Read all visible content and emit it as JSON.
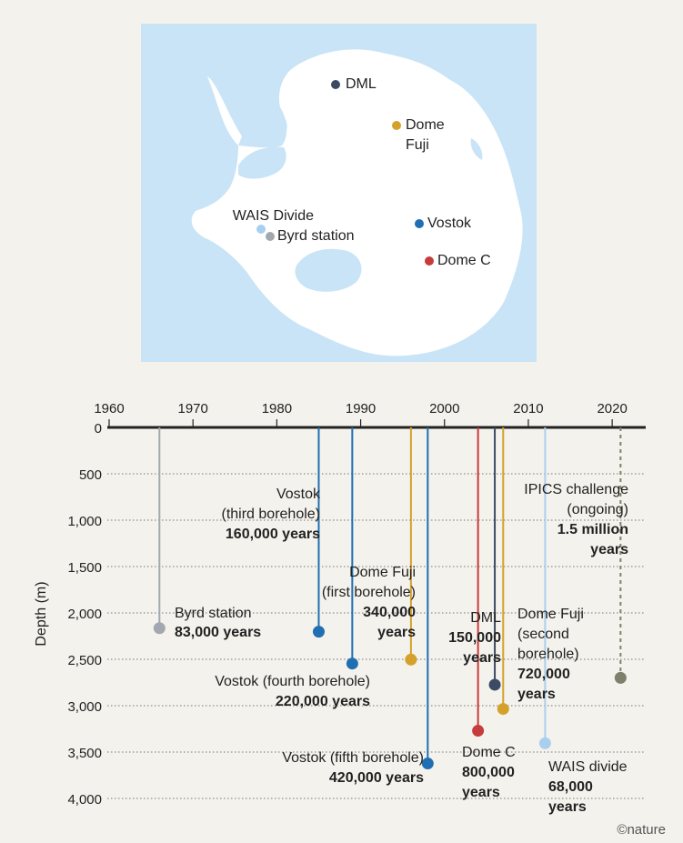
{
  "colors": {
    "background": "#f4f2ec",
    "ocean": "#c8e4f6",
    "land": "#ffffff",
    "ice_shelf": "#c8e4f6",
    "axis": "#222222",
    "grid": "#777777"
  },
  "map": {
    "sites": [
      {
        "name": "DML",
        "color": "#3d4a63"
      },
      {
        "name": "Dome Fuji",
        "lines": [
          "Dome",
          "Fuji"
        ],
        "color": "#d4a22c"
      },
      {
        "name": "WAIS Divide",
        "color": "#a9cfee"
      },
      {
        "name": "Byrd station",
        "color": "#a3a8b0"
      },
      {
        "name": "Vostok",
        "color": "#1f6fb2"
      },
      {
        "name": "Dome C",
        "color": "#c63b3b"
      }
    ]
  },
  "chart_data": {
    "type": "scatter",
    "title": "",
    "xlabel": "",
    "ylabel": "Depth (m)",
    "xlim": [
      1958,
      2025
    ],
    "ylim": [
      0,
      4000
    ],
    "x_ticks": [
      "1960",
      "1970",
      "1980",
      "1990",
      "2000",
      "2010",
      "2020"
    ],
    "y_ticks": [
      "0",
      "500",
      "1,000",
      "1,500",
      "2,000",
      "2,500",
      "3,000",
      "3,500",
      "4,000"
    ],
    "y_tick_values": [
      0,
      500,
      1000,
      1500,
      2000,
      2500,
      3000,
      3500,
      4000
    ],
    "x_tick_values": [
      1960,
      1970,
      1980,
      1990,
      2000,
      2010,
      2020
    ],
    "points": [
      {
        "id": "byrd",
        "year": 1966,
        "depth": 2164,
        "color": "#a3a8b0",
        "label_lines": [
          "Byrd station"
        ],
        "age": "83,000 years"
      },
      {
        "id": "vostok3",
        "year": 1985,
        "depth": 2202,
        "color": "#1f6fb2",
        "label_lines": [
          "Vostok",
          "(third borehole)"
        ],
        "age": "160,000 years"
      },
      {
        "id": "vostok4",
        "year": 1989,
        "depth": 2546,
        "color": "#1f6fb2",
        "label_lines": [
          "Vostok (fourth borehole)"
        ],
        "age": "220,000 years"
      },
      {
        "id": "domefuji1",
        "year": 1996,
        "depth": 2503,
        "color": "#d4a22c",
        "label_lines": [
          "Dome Fuji",
          "(first borehole)"
        ],
        "age": "340,000 years",
        "age_lines": [
          "340,000",
          "years"
        ]
      },
      {
        "id": "vostok5",
        "year": 1998,
        "depth": 3623,
        "color": "#1f6fb2",
        "label_lines": [
          "Vostok (fifth borehole)"
        ],
        "age": "420,000 years"
      },
      {
        "id": "domec",
        "year": 2004,
        "depth": 3270,
        "color": "#c63b3b",
        "label_lines": [
          "Dome C"
        ],
        "age": "800,000 years",
        "age_lines": [
          "800,000",
          "years"
        ]
      },
      {
        "id": "dml",
        "year": 2006,
        "depth": 2774,
        "color": "#3d4a63",
        "label_lines": [
          "DML"
        ],
        "age": "150,000 years",
        "age_lines": [
          "150,000",
          "years"
        ]
      },
      {
        "id": "domefuji2",
        "year": 2007,
        "depth": 3035,
        "color": "#d4a22c",
        "label_lines": [
          "Dome Fuji",
          "(second",
          "borehole)"
        ],
        "age": "720,000 years",
        "age_lines": [
          "720,000",
          "years"
        ]
      },
      {
        "id": "wais",
        "year": 2012,
        "depth": 3405,
        "color": "#a9cfee",
        "label_lines": [
          "WAIS divide"
        ],
        "age": "68,000 years",
        "age_lines": [
          "68,000",
          "years"
        ]
      },
      {
        "id": "ipics",
        "year": 2021,
        "depth": 2700,
        "color": "#807f6a",
        "dashed": true,
        "label_lines": [
          "IPICS challenge",
          "(ongoing)"
        ],
        "age": "1.5 million years",
        "age_lines": [
          "1.5 million",
          "years"
        ]
      }
    ]
  },
  "credit": "©nature"
}
